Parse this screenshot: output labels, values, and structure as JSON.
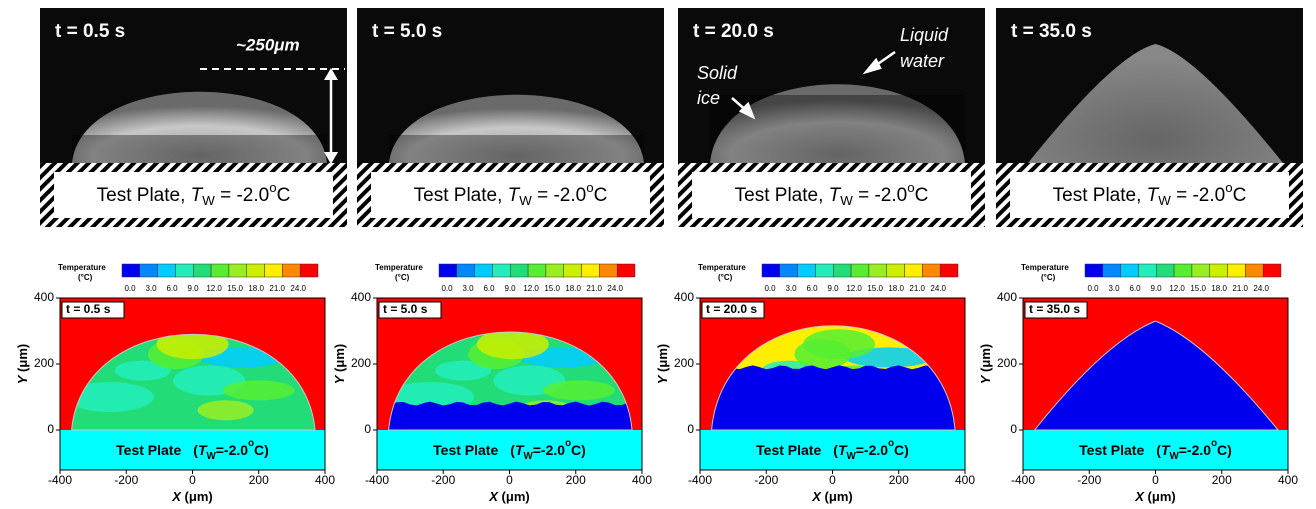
{
  "photos": {
    "times": [
      "t = 0.5 s",
      "t = 5.0 s",
      "t = 20.0 s",
      "t = 35.0 s"
    ],
    "plate": {
      "name": "Test Plate, ",
      "symbol": "T",
      "sub": "W",
      "value": " = -2.0",
      "sup": "o",
      "unit": "C"
    },
    "annotations": {
      "height": "~250μm",
      "liquid": [
        "Liquid",
        "water"
      ],
      "solid": [
        "Solid",
        "ice"
      ]
    }
  },
  "plots": {
    "times": [
      "t = 0.5 s",
      "t = 5.0 s",
      "t = 20.0 s",
      "t = 35.0 s"
    ],
    "plate": {
      "name": "Test Plate",
      "open": "(",
      "symbol": "T",
      "sub": "W",
      "value": "=-2.0",
      "sup": "o",
      "unit": "C)"
    },
    "legend": {
      "title": [
        "Temperature",
        "(°C)"
      ],
      "labels": [
        "0.0",
        "3.0",
        "6.0",
        "9.0",
        "12.0",
        "15.0",
        "18.0",
        "21.0",
        "24.0"
      ],
      "colors": [
        "#0000ee",
        "#0088ff",
        "#00ccff",
        "#22eebb",
        "#22dd77",
        "#55ee33",
        "#99ee22",
        "#ccee00",
        "#ffee00",
        "#ff8800",
        "#ff0000"
      ]
    },
    "yticks": [
      "0",
      "200",
      "400"
    ],
    "xticks": [
      "-400",
      "-200",
      "0",
      "200",
      "400"
    ],
    "xlabel": {
      "symbol": "X",
      "unit": " (μm)"
    },
    "ylabel": {
      "symbol": "Y",
      "unit": " (μm)"
    }
  }
}
